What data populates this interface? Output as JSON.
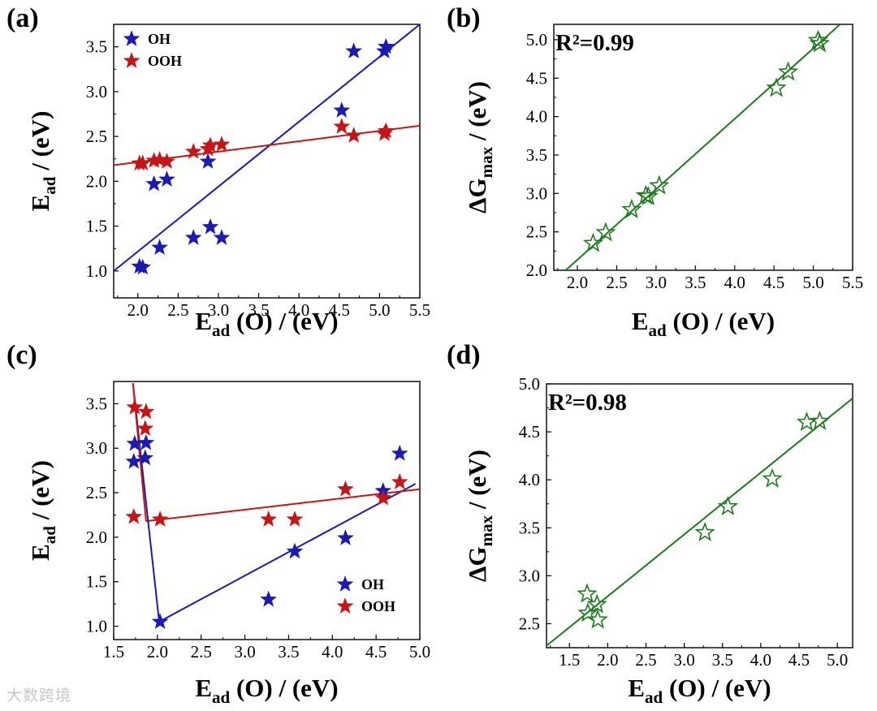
{
  "watermark": "大数跨境",
  "colors": {
    "oh": "#1a1ab4",
    "ooh": "#c81414",
    "fit": "#1e7a1e",
    "axis": "#000000"
  },
  "chart_data": [
    {
      "panel": "(a)",
      "type": "scatter",
      "xlabel": {
        "main": "E",
        "sub": "ad",
        "rest": " (O) / (eV)"
      },
      "ylabel": {
        "main": "E",
        "sub": "ad",
        "rest": " / (eV)"
      },
      "xlim": [
        1.7,
        5.5
      ],
      "ylim": [
        0.7,
        3.75
      ],
      "xticks": [
        "2.0",
        "2.5",
        "3.0",
        "3.5",
        "4.0",
        "4.5",
        "5.0",
        "5.5"
      ],
      "yticks": [
        "1.0",
        "1.5",
        "2.0",
        "2.5",
        "3.0",
        "3.5"
      ],
      "legend": "top-left",
      "series": [
        {
          "name": "OH",
          "color_key": "oh",
          "marker": "filled",
          "points": [
            [
              2.02,
              1.05
            ],
            [
              2.06,
              1.04
            ],
            [
              2.2,
              1.97
            ],
            [
              2.27,
              1.26
            ],
            [
              2.36,
              2.02
            ],
            [
              2.69,
              1.37
            ],
            [
              2.87,
              2.22
            ],
            [
              2.9,
              1.49
            ],
            [
              3.04,
              1.37
            ],
            [
              4.53,
              2.79
            ],
            [
              4.68,
              3.45
            ],
            [
              5.06,
              3.45
            ],
            [
              5.08,
              3.5
            ]
          ],
          "fit": [
            [
              1.7,
              1.0
            ],
            [
              5.5,
              3.75
            ]
          ]
        },
        {
          "name": "OOH",
          "color_key": "ooh",
          "marker": "filled",
          "points": [
            [
              2.02,
              2.2
            ],
            [
              2.06,
              2.2
            ],
            [
              2.2,
              2.23
            ],
            [
              2.27,
              2.24
            ],
            [
              2.36,
              2.22
            ],
            [
              2.69,
              2.33
            ],
            [
              2.87,
              2.36
            ],
            [
              2.9,
              2.4
            ],
            [
              3.04,
              2.41
            ],
            [
              4.53,
              2.61
            ],
            [
              4.68,
              2.51
            ],
            [
              5.06,
              2.53
            ],
            [
              5.08,
              2.56
            ]
          ],
          "fit": [
            [
              1.7,
              2.18
            ],
            [
              5.5,
              2.62
            ]
          ]
        }
      ]
    },
    {
      "panel": "(b)",
      "type": "scatter",
      "xlabel": {
        "main": "E",
        "sub": "ad",
        "rest": " (O) / (eV)"
      },
      "ylabel": {
        "main": "ΔG",
        "sub": "max",
        "rest": " / (eV)"
      },
      "annotation": "R²=0.99",
      "xlim": [
        1.7,
        5.5
      ],
      "ylim": [
        2.0,
        5.2
      ],
      "xticks": [
        "2.0",
        "2.5",
        "3.0",
        "3.5",
        "4.0",
        "4.5",
        "5.0",
        "5.5"
      ],
      "yticks": [
        "2.0",
        "2.5",
        "3.0",
        "3.5",
        "4.0",
        "4.5",
        "5.0"
      ],
      "series": [
        {
          "name": "ΔGmax",
          "color_key": "fit",
          "marker": "hollow",
          "points": [
            [
              2.2,
              2.35
            ],
            [
              2.36,
              2.49
            ],
            [
              2.69,
              2.79
            ],
            [
              2.87,
              2.97
            ],
            [
              2.9,
              2.96
            ],
            [
              3.04,
              3.1
            ],
            [
              4.53,
              4.37
            ],
            [
              4.68,
              4.58
            ],
            [
              5.06,
              4.99
            ],
            [
              5.08,
              4.95
            ]
          ],
          "fit": [
            [
              1.85,
              2.0
            ],
            [
              5.45,
              5.3
            ]
          ]
        }
      ]
    },
    {
      "panel": "(c)",
      "type": "scatter",
      "xlabel": {
        "main": "E",
        "sub": "ad",
        "rest": " (O) / (eV)"
      },
      "ylabel": {
        "main": "E",
        "sub": "ad",
        "rest": " / (eV)"
      },
      "xlim": [
        1.5,
        5.0
      ],
      "ylim": [
        0.85,
        3.75
      ],
      "xticks": [
        "1.5",
        "2.0",
        "2.5",
        "3.0",
        "3.5",
        "4.0",
        "4.5",
        "5.0"
      ],
      "yticks": [
        "1.0",
        "1.5",
        "2.0",
        "2.5",
        "3.0",
        "3.5"
      ],
      "legend": "bottom-right",
      "series": [
        {
          "name": "OH",
          "color_key": "oh",
          "marker": "filled",
          "points": [
            [
              1.73,
              2.85
            ],
            [
              1.74,
              3.05
            ],
            [
              1.86,
              2.89
            ],
            [
              1.87,
              3.06
            ],
            [
              2.03,
              1.05
            ],
            [
              3.27,
              1.3
            ],
            [
              3.57,
              1.84
            ],
            [
              4.15,
              1.99
            ],
            [
              4.58,
              2.52
            ],
            [
              4.77,
              2.94
            ]
          ],
          "fit": [
            [
              2.02,
              1.05
            ],
            [
              4.95,
              2.6
            ]
          ]
        },
        {
          "name": "OOH",
          "color_key": "ooh",
          "marker": "filled",
          "points": [
            [
              1.73,
              2.23
            ],
            [
              1.74,
              3.46
            ],
            [
              1.86,
              3.22
            ],
            [
              1.87,
              3.41
            ],
            [
              2.03,
              2.2
            ],
            [
              3.27,
              2.2
            ],
            [
              3.57,
              2.2
            ],
            [
              4.15,
              2.54
            ],
            [
              4.58,
              2.44
            ],
            [
              4.77,
              2.62
            ]
          ],
          "fit": [
            [
              1.87,
              2.18
            ],
            [
              5.0,
              2.54
            ]
          ]
        }
      ],
      "upper_lines": [
        [
          [
            1.72,
            3.73
          ],
          [
            2.02,
            1.05
          ]
        ],
        [
          [
            1.72,
            3.73
          ],
          [
            1.87,
            2.18
          ]
        ]
      ]
    },
    {
      "panel": "(d)",
      "type": "scatter",
      "xlabel": {
        "main": "E",
        "sub": "ad",
        "rest": " (O) / (eV)"
      },
      "ylabel": {
        "main": "ΔG",
        "sub": "max",
        "rest": " / (eV)"
      },
      "annotation": "R²=0.98",
      "xlim": [
        1.2,
        5.2
      ],
      "ylim": [
        2.25,
        5.0
      ],
      "xticks": [
        "1.5",
        "2.0",
        "2.5",
        "3.0",
        "3.5",
        "4.0",
        "4.5",
        "5.0"
      ],
      "yticks": [
        "2.5",
        "3.0",
        "3.5",
        "4.0",
        "4.5",
        "5.0"
      ],
      "series": [
        {
          "name": "ΔGmax",
          "color_key": "fit",
          "marker": "hollow",
          "points": [
            [
              1.73,
              2.81
            ],
            [
              1.74,
              2.61
            ],
            [
              1.86,
              2.7
            ],
            [
              1.87,
              2.54
            ],
            [
              3.27,
              3.45
            ],
            [
              3.57,
              3.72
            ],
            [
              4.15,
              4.01
            ],
            [
              4.6,
              4.6
            ],
            [
              4.77,
              4.61
            ]
          ],
          "fit": [
            [
              1.2,
              2.27
            ],
            [
              5.2,
              4.85
            ]
          ]
        }
      ]
    }
  ]
}
